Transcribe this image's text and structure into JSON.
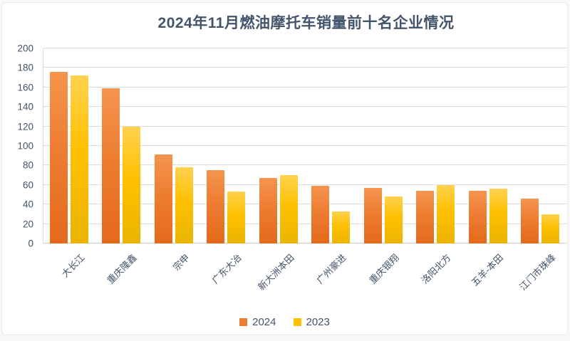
{
  "title": "2024年11月燃油摩托车销量前十名企业情况",
  "colors": {
    "title_text": "#44546a",
    "axis_text": "#44546a",
    "gridline": "#dcdcdc",
    "baseline": "#cfcfcf",
    "series_2024": "#ed7d31",
    "series_2024_top": "#f5944e",
    "series_2024_bottom": "#e4691c",
    "series_2023": "#ffc000",
    "series_2023_top": "#ffd24f",
    "series_2023_bottom": "#eab400"
  },
  "chart_data": {
    "type": "bar",
    "title": "2024年11月燃油摩托车销量前十名企业情况",
    "categories": [
      "大长江",
      "重庆隆鑫",
      "宗申",
      "广东大冶",
      "新大洲本田",
      "广州豪进",
      "重庆银翔",
      "洛阳北方",
      "五羊-本田",
      "江门市珠峰"
    ],
    "series": [
      {
        "name": "2024",
        "color": "#ed7d31",
        "values": [
          176,
          159,
          91,
          75,
          67,
          59,
          57,
          54,
          54,
          46
        ]
      },
      {
        "name": "2023",
        "color": "#ffc000",
        "values": [
          172,
          120,
          78,
          53,
          70,
          33,
          48,
          60,
          56,
          30
        ]
      }
    ],
    "xlabel": "",
    "ylabel": "",
    "ylim": [
      0,
      200
    ],
    "ytick_step": 20,
    "ytick_labels": [
      "0",
      "20",
      "40",
      "60",
      "80",
      "100",
      "120",
      "140",
      "160",
      "180",
      "200"
    ],
    "grid": "horizontal",
    "legend_position": "bottom"
  },
  "legend": {
    "items": [
      {
        "label": "2024"
      },
      {
        "label": "2023"
      }
    ]
  }
}
